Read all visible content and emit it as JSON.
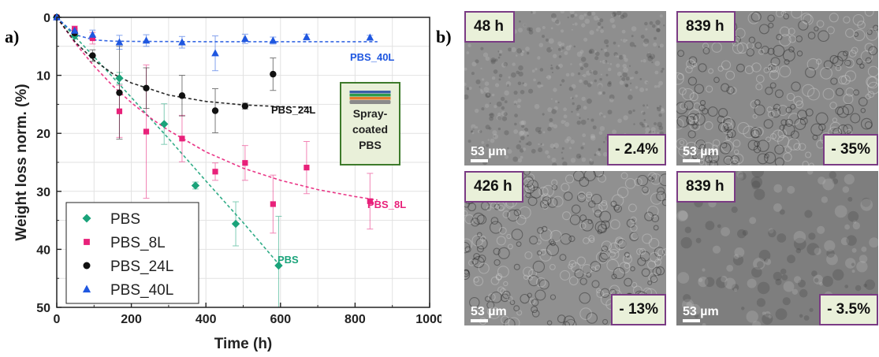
{
  "figure": {
    "panel_a_label": "a)",
    "panel_b_label": "b)"
  },
  "chart_data": {
    "type": "scatter",
    "xlabel": "Time (h)",
    "ylabel": "Weight loss norm. (%)",
    "xlim": [
      0,
      1000
    ],
    "ylim": [
      0,
      50
    ],
    "y_inverted": true,
    "x_ticks": [
      0,
      200,
      400,
      600,
      800,
      1000
    ],
    "y_ticks": [
      0,
      10,
      20,
      30,
      40,
      50
    ],
    "grid": true,
    "legend_position": "bottom-left",
    "inset": {
      "lines": [
        "Spray-",
        "coated",
        "PBS"
      ],
      "layer_colors": [
        "#3a5fa8",
        "#2e9a4b",
        "#e57a2a",
        "#8a8a8a"
      ]
    },
    "series": [
      {
        "name": "PBS",
        "color": "#1aa37a",
        "marker": "diamond",
        "curve_label": "PBS",
        "points": [
          [
            0,
            0
          ],
          [
            48,
            3.2
          ],
          [
            168,
            10.5
          ],
          [
            288,
            18.4
          ],
          [
            372,
            29
          ],
          [
            480,
            35.6
          ],
          [
            595,
            42.8
          ]
        ],
        "errors": [
          0,
          0.5,
          1.0,
          3.5,
          0.6,
          3.8,
          8.5
        ],
        "fit": [
          [
            0,
            0
          ],
          [
            100,
            6.8
          ],
          [
            200,
            13.8
          ],
          [
            300,
            20.9
          ],
          [
            400,
            28.2
          ],
          [
            500,
            35.4
          ],
          [
            600,
            42.9
          ]
        ]
      },
      {
        "name": "PBS_8L",
        "color": "#e8217a",
        "marker": "square",
        "curve_label": "PBS_8L",
        "points": [
          [
            0,
            0
          ],
          [
            48,
            2.0
          ],
          [
            96,
            3.6
          ],
          [
            168,
            16.2
          ],
          [
            240,
            19.7
          ],
          [
            336,
            20.9
          ],
          [
            425,
            26.6
          ],
          [
            505,
            25.1
          ],
          [
            580,
            32.2
          ],
          [
            670,
            25.9
          ],
          [
            840,
            31.7
          ]
        ],
        "errors": [
          0,
          0.5,
          1.0,
          4.5,
          11.5,
          4.0,
          1.5,
          3.0,
          5.0,
          4.5,
          4.8
        ],
        "fit": [
          [
            0,
            0
          ],
          [
            50,
            4.5
          ],
          [
            100,
            8.4
          ],
          [
            150,
            11.8
          ],
          [
            200,
            14.7
          ],
          [
            250,
            17.3
          ],
          [
            300,
            19.5
          ],
          [
            400,
            23.2
          ],
          [
            500,
            26.0
          ],
          [
            600,
            28.1
          ],
          [
            700,
            29.7
          ],
          [
            800,
            30.9
          ],
          [
            860,
            31.5
          ]
        ]
      },
      {
        "name": "PBS_24L",
        "color": "#111111",
        "marker": "circle",
        "curve_label": "PBS_24L",
        "points": [
          [
            0,
            0
          ],
          [
            48,
            2.7
          ],
          [
            96,
            6.6
          ],
          [
            168,
            13.0
          ],
          [
            240,
            12.2
          ],
          [
            336,
            13.5
          ],
          [
            425,
            16.1
          ],
          [
            505,
            15.3
          ],
          [
            580,
            9.8
          ]
        ],
        "errors": [
          0,
          0.5,
          1.0,
          8.0,
          3.5,
          3.5,
          3.8,
          0.5,
          2.8
        ],
        "fit": [
          [
            0,
            0
          ],
          [
            50,
            4.3
          ],
          [
            100,
            7.4
          ],
          [
            150,
            9.7
          ],
          [
            200,
            11.3
          ],
          [
            300,
            13.4
          ],
          [
            400,
            14.5
          ],
          [
            500,
            15.1
          ],
          [
            600,
            15.4
          ],
          [
            680,
            15.5
          ]
        ]
      },
      {
        "name": "PBS_40L",
        "color": "#1f57e0",
        "marker": "triangle",
        "curve_label": "PBS_40L",
        "points": [
          [
            0,
            0
          ],
          [
            48,
            2.3
          ],
          [
            96,
            3.0
          ],
          [
            168,
            4.3
          ],
          [
            240,
            4.0
          ],
          [
            336,
            4.3
          ],
          [
            425,
            6.2
          ],
          [
            505,
            3.7
          ],
          [
            580,
            4.0
          ],
          [
            670,
            3.4
          ],
          [
            840,
            3.5
          ]
        ],
        "errors": [
          0,
          0.4,
          0.8,
          1.2,
          1.0,
          1.0,
          3.0,
          0.8,
          0.6,
          0.5,
          0.4
        ],
        "fit": [
          [
            0,
            0
          ],
          [
            50,
            3.0
          ],
          [
            100,
            3.9
          ],
          [
            150,
            4.1
          ],
          [
            200,
            4.15
          ],
          [
            400,
            4.2
          ],
          [
            860,
            4.2
          ]
        ]
      }
    ]
  },
  "micrographs": [
    {
      "time": "48 h",
      "loss": "- 2.4%",
      "scale": "53 µm",
      "tone": "#8e8e8e",
      "texture": "fine"
    },
    {
      "time": "839 h",
      "loss": "- 35%",
      "scale": "53 µm",
      "tone": "#8a8a8a",
      "texture": "circles"
    },
    {
      "time": "426 h",
      "loss": "- 13%",
      "scale": "53 µm",
      "tone": "#909090",
      "texture": "circles"
    },
    {
      "time": "839 h",
      "loss": "- 3.5%",
      "scale": "53 µm",
      "tone": "#7e7e7e",
      "texture": "smooth"
    }
  ]
}
